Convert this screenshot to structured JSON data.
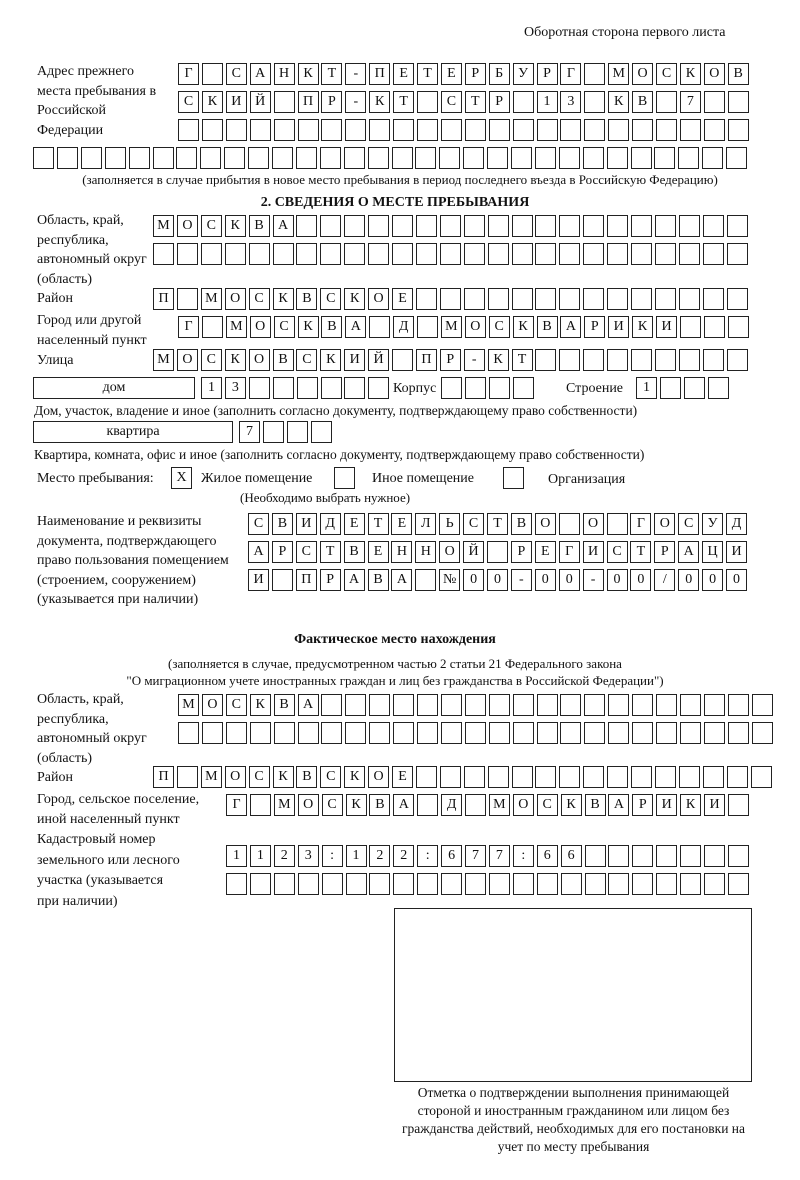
{
  "header": "Оборотная сторона первого листа",
  "previous_address": {
    "label": "Адрес прежнего места пребывания в Российской Федерации",
    "rows": [
      [
        "Г",
        "",
        "С",
        "А",
        "Н",
        "К",
        "Т",
        "-",
        "П",
        "Е",
        "Т",
        "Е",
        "Р",
        "Б",
        "У",
        "Р",
        "Г",
        "",
        "М",
        "О",
        "С",
        "К",
        "О",
        "В"
      ],
      [
        "С",
        "К",
        "И",
        "Й",
        "",
        "П",
        "Р",
        "-",
        "К",
        "Т",
        "",
        "С",
        "Т",
        "Р",
        "",
        "1",
        "3",
        "",
        "К",
        "В",
        "",
        "7",
        "",
        ""
      ],
      [
        "",
        "",
        "",
        "",
        "",
        "",
        "",
        "",
        "",
        "",
        "",
        "",
        "",
        "",
        "",
        "",
        "",
        "",
        "",
        "",
        "",
        "",
        "",
        ""
      ],
      [
        "",
        "",
        "",
        "",
        "",
        "",
        "",
        "",
        "",
        "",
        "",
        "",
        "",
        "",
        "",
        "",
        "",
        "",
        "",
        "",
        "",
        "",
        "",
        "",
        "",
        "",
        "",
        "",
        "",
        ""
      ]
    ],
    "note": "(заполняется в случае прибытия в новое место пребывания в период последнего въезда в Российскую Федерацию)"
  },
  "section2": {
    "title": "2. СВЕДЕНИЯ О МЕСТЕ ПРЕБЫВАНИЯ",
    "region_label": "Область, край, республика, автономный округ (область)",
    "region_rows": [
      [
        "М",
        "О",
        "С",
        "К",
        "В",
        "А",
        "",
        "",
        "",
        "",
        "",
        "",
        "",
        "",
        "",
        "",
        "",
        "",
        "",
        "",
        "",
        "",
        "",
        "",
        ""
      ],
      [
        "",
        "",
        "",
        "",
        "",
        "",
        "",
        "",
        "",
        "",
        "",
        "",
        "",
        "",
        "",
        "",
        "",
        "",
        "",
        "",
        "",
        "",
        "",
        "",
        ""
      ]
    ],
    "district_label": "Район",
    "district": [
      "П",
      "",
      "М",
      "О",
      "С",
      "К",
      "В",
      "С",
      "К",
      "О",
      "Е",
      "",
      "",
      "",
      "",
      "",
      "",
      "",
      "",
      "",
      "",
      "",
      "",
      "",
      ""
    ],
    "city_label": "Город или другой населенный пункт",
    "city": [
      "Г",
      "",
      "М",
      "О",
      "С",
      "К",
      "В",
      "А",
      "",
      "Д",
      "",
      "М",
      "О",
      "С",
      "К",
      "В",
      "А",
      "Р",
      "И",
      "К",
      "И",
      "",
      "",
      ""
    ],
    "street_label": "Улица",
    "street": [
      "М",
      "О",
      "С",
      "К",
      "О",
      "В",
      "С",
      "К",
      "И",
      "Й",
      "",
      "П",
      "Р",
      "-",
      "К",
      "Т",
      "",
      "",
      "",
      "",
      "",
      "",
      "",
      "",
      ""
    ],
    "house_type": "дом",
    "house": [
      "1",
      "3",
      "",
      "",
      "",
      "",
      "",
      ""
    ],
    "korpus_label": "Корпус",
    "korpus": [
      "",
      "",
      "",
      ""
    ],
    "building_label": "Строение",
    "building": [
      "1",
      "",
      "",
      ""
    ],
    "house_note": "Дом, участок, владение и иное (заполнить согласно документу, подтверждающему право собственности)",
    "flat_type": "квартира",
    "flat": [
      "7",
      "",
      "",
      ""
    ],
    "flat_note": "Квартира, комната, офис и иное (заполнить согласно документу, подтверждающему право собственности)",
    "stay_place_label": "Место пребывания:",
    "stay_options": [
      {
        "label": "Жилое помещение",
        "mark": "X",
        "checked": true
      },
      {
        "label": "Иное помещение",
        "mark": "",
        "checked": false
      },
      {
        "label": "Организация",
        "mark": "",
        "checked": false
      }
    ],
    "stay_hint": "(Необходимо выбрать нужное)",
    "doc_label": "Наименование и реквизиты документа, подтверждающего право пользования помещением (строением, сооружением) (указывается при наличии)",
    "doc_rows": [
      [
        "С",
        "В",
        "И",
        "Д",
        "Е",
        "Т",
        "Е",
        "Л",
        "Ь",
        "С",
        "Т",
        "В",
        "О",
        "",
        "О",
        "",
        "Г",
        "О",
        "С",
        "У",
        "Д"
      ],
      [
        "А",
        "Р",
        "С",
        "Т",
        "В",
        "Е",
        "Н",
        "Н",
        "О",
        "Й",
        "",
        "Р",
        "Е",
        "Г",
        "И",
        "С",
        "Т",
        "Р",
        "А",
        "Ц",
        "И"
      ],
      [
        "И",
        "",
        "П",
        "Р",
        "А",
        "В",
        "А",
        "",
        "№",
        "0",
        "0",
        "-",
        "0",
        "0",
        "-",
        "0",
        "0",
        "/",
        "0",
        "0",
        "0"
      ]
    ]
  },
  "actual": {
    "title": "Фактическое место нахождения",
    "note1": "(заполняется в случае, предусмотренном частью 2 статьи 21 Федерального закона",
    "note2": "\"О миграционном учете иностранных граждан и лиц без гражданства в Российской Федерации\")",
    "region_label": "Область, край, республика, автономный округ (область)",
    "region_rows": [
      [
        "М",
        "О",
        "С",
        "К",
        "В",
        "А",
        "",
        "",
        "",
        "",
        "",
        "",
        "",
        "",
        "",
        "",
        "",
        "",
        "",
        "",
        "",
        "",
        "",
        "",
        ""
      ],
      [
        "",
        "",
        "",
        "",
        "",
        "",
        "",
        "",
        "",
        "",
        "",
        "",
        "",
        "",
        "",
        "",
        "",
        "",
        "",
        "",
        "",
        "",
        "",
        "",
        ""
      ]
    ],
    "district_label": "Район",
    "district": [
      "П",
      "",
      "М",
      "О",
      "С",
      "К",
      "В",
      "С",
      "К",
      "О",
      "Е",
      "",
      "",
      "",
      "",
      "",
      "",
      "",
      "",
      "",
      "",
      "",
      "",
      "",
      "",
      ""
    ],
    "city_label": "Город, сельское поселение, иной населенный пункт",
    "city": [
      "Г",
      "",
      "М",
      "О",
      "С",
      "К",
      "В",
      "А",
      "",
      "Д",
      "",
      "М",
      "О",
      "С",
      "К",
      "В",
      "А",
      "Р",
      "И",
      "К",
      "И",
      ""
    ],
    "cadastre_label": "Кадастровый номер земельного или лесного участка (указывается при наличии)",
    "cadastre_rows": [
      [
        "1",
        "1",
        "2",
        "3",
        ":",
        "1",
        "2",
        "2",
        ":",
        "6",
        "7",
        "7",
        ":",
        "6",
        "6",
        "",
        "",
        "",
        "",
        "",
        "",
        ""
      ],
      [
        "",
        "",
        "",
        "",
        "",
        "",
        "",
        "",
        "",
        "",
        "",
        "",
        "",
        "",
        "",
        "",
        "",
        "",
        "",
        "",
        "",
        ""
      ]
    ]
  },
  "confirmation_caption": "Отметка о подтверждении выполнения принимающей стороной и иностранным гражданином или лицом без гражданства действий, необходимых для его постановки на учет по месту пребывания"
}
